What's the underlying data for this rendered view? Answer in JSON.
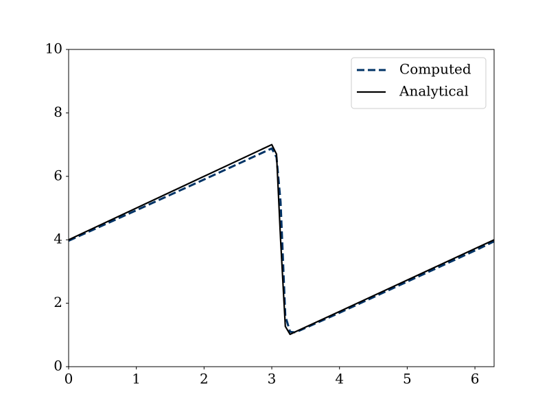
{
  "chart_data": {
    "type": "line",
    "x": [
      0,
      1,
      2,
      3,
      3.07,
      3.13,
      3.2,
      3.27,
      3.35,
      4,
      5,
      6,
      6.283
    ],
    "series": [
      {
        "name": "Computed",
        "color": "#003366",
        "dash": true,
        "values": [
          3.97,
          4.93,
          5.9,
          6.88,
          6.6,
          5.2,
          1.6,
          1.1,
          1.08,
          1.7,
          2.68,
          3.66,
          3.95
        ]
      },
      {
        "name": "Analytical",
        "color": "#000000",
        "dash": false,
        "values": [
          4,
          5,
          6,
          7,
          6.7,
          4,
          1.27,
          1.02,
          1.1,
          1.74,
          2.73,
          3.72,
          4
        ]
      }
    ],
    "xlim": [
      0,
      6.283
    ],
    "xticks": [
      0,
      1,
      2,
      3,
      4,
      5,
      6
    ],
    "ylim": [
      0,
      10
    ],
    "yticks": [
      0,
      2,
      4,
      6,
      8,
      10
    ],
    "grid": false,
    "legend": "upper right"
  }
}
